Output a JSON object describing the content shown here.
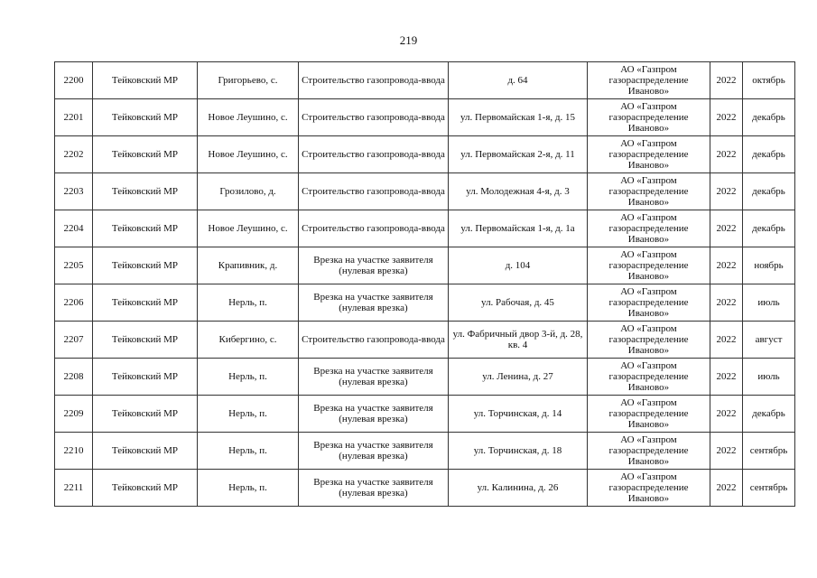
{
  "page_number": "219",
  "rows": [
    [
      "2200",
      "Тейковский МР",
      "Григорьево, с.",
      "Строительство газопровода-ввода",
      "д. 64",
      "АО «Газпром газораспределение Иваново»",
      "2022",
      "октябрь"
    ],
    [
      "2201",
      "Тейковский МР",
      "Новое Леушино, с.",
      "Строительство газопровода-ввода",
      "ул. Первомайская 1-я, д. 15",
      "АО «Газпром газораспределение Иваново»",
      "2022",
      "декабрь"
    ],
    [
      "2202",
      "Тейковский МР",
      "Новое Леушино, с.",
      "Строительство газопровода-ввода",
      "ул. Первомайская 2-я, д. 11",
      "АО «Газпром газораспределение Иваново»",
      "2022",
      "декабрь"
    ],
    [
      "2203",
      "Тейковский МР",
      "Грозилово, д.",
      "Строительство газопровода-ввода",
      "ул. Молодежная 4-я, д. 3",
      "АО «Газпром газораспределение Иваново»",
      "2022",
      "декабрь"
    ],
    [
      "2204",
      "Тейковский МР",
      "Новое Леушино, с.",
      "Строительство газопровода-ввода",
      "ул. Первомайская 1-я, д. 1а",
      "АО «Газпром газораспределение Иваново»",
      "2022",
      "декабрь"
    ],
    [
      "2205",
      "Тейковский МР",
      "Крапивник, д.",
      "Врезка на участке заявителя (нулевая врезка)",
      "д. 104",
      "АО «Газпром газораспределение Иваново»",
      "2022",
      "ноябрь"
    ],
    [
      "2206",
      "Тейковский МР",
      "Нерль, п.",
      "Врезка на участке заявителя (нулевая врезка)",
      "ул. Рабочая, д. 45",
      "АО «Газпром газораспределение Иваново»",
      "2022",
      "июль"
    ],
    [
      "2207",
      "Тейковский МР",
      "Кибергино, с.",
      "Строительство газопровода-ввода",
      "ул. Фабричный двор 3-й, д. 28, кв. 4",
      "АО «Газпром газораспределение Иваново»",
      "2022",
      "август"
    ],
    [
      "2208",
      "Тейковский МР",
      "Нерль, п.",
      "Врезка на участке заявителя (нулевая врезка)",
      "ул. Ленина, д. 27",
      "АО «Газпром газораспределение Иваново»",
      "2022",
      "июль"
    ],
    [
      "2209",
      "Тейковский МР",
      "Нерль, п.",
      "Врезка на участке заявителя (нулевая врезка)",
      "ул. Торчинская, д. 14",
      "АО «Газпром газораспределение Иваново»",
      "2022",
      "декабрь"
    ],
    [
      "2210",
      "Тейковский МР",
      "Нерль, п.",
      "Врезка на участке заявителя (нулевая врезка)",
      "ул. Торчинская, д. 18",
      "АО «Газпром газораспределение Иваново»",
      "2022",
      "сентябрь"
    ],
    [
      "2211",
      "Тейковский МР",
      "Нерль, п.",
      "Врезка на участке заявителя (нулевая врезка)",
      "ул. Калинина, д. 26",
      "АО «Газпром газораспределение Иваново»",
      "2022",
      "сентябрь"
    ]
  ]
}
